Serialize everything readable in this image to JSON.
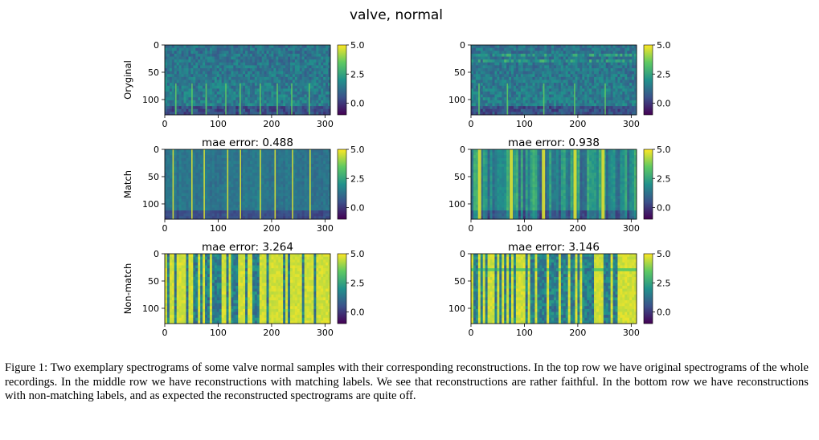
{
  "figure": {
    "suptitle": "valve, normal",
    "row_labels": [
      "Oryginal",
      "Match",
      "Non-match"
    ],
    "panel_titles": [
      [
        "",
        ""
      ],
      [
        "mae error: 0.488",
        "mae error: 0.938"
      ],
      [
        "mae error: 3.264",
        "mae error: 3.146"
      ]
    ],
    "x_ticks": [
      "0",
      "100",
      "200",
      "300"
    ],
    "y_ticks": [
      "0",
      "50",
      "100"
    ],
    "colorbar_ticks": [
      "5.0",
      "2.5",
      "0.0"
    ],
    "colormap": [
      "#440154",
      "#3b528b",
      "#21918c",
      "#5ec962",
      "#fde725"
    ]
  },
  "chart_data": {
    "type": "heatmap",
    "title": "valve, normal",
    "rows": [
      "Oryginal",
      "Match",
      "Non-match"
    ],
    "columns": 2,
    "xlim": [
      0,
      310
    ],
    "ylim": [
      128,
      0
    ],
    "x_ticks": [
      0,
      100,
      200,
      300
    ],
    "y_ticks": [
      0,
      50,
      100
    ],
    "colorbar_range": [
      -1.0,
      5.0
    ],
    "colorbar_ticks": [
      5.0,
      2.5,
      0.0
    ],
    "mae_errors": {
      "match": [
        0.488,
        0.938
      ],
      "non_match": [
        3.264,
        3.146
      ]
    }
  },
  "caption": "Figure 1: Two exemplary spectrograms of some valve normal samples with their corresponding reconstructions. In the top row we have original spectrograms of the whole recordings. In the middle row we have reconstructions with matching labels. We see that reconstructions are rather faithful. In the bottom row we have reconstructions with non-matching labels, and as expected the reconstructed spectrograms are quite off."
}
